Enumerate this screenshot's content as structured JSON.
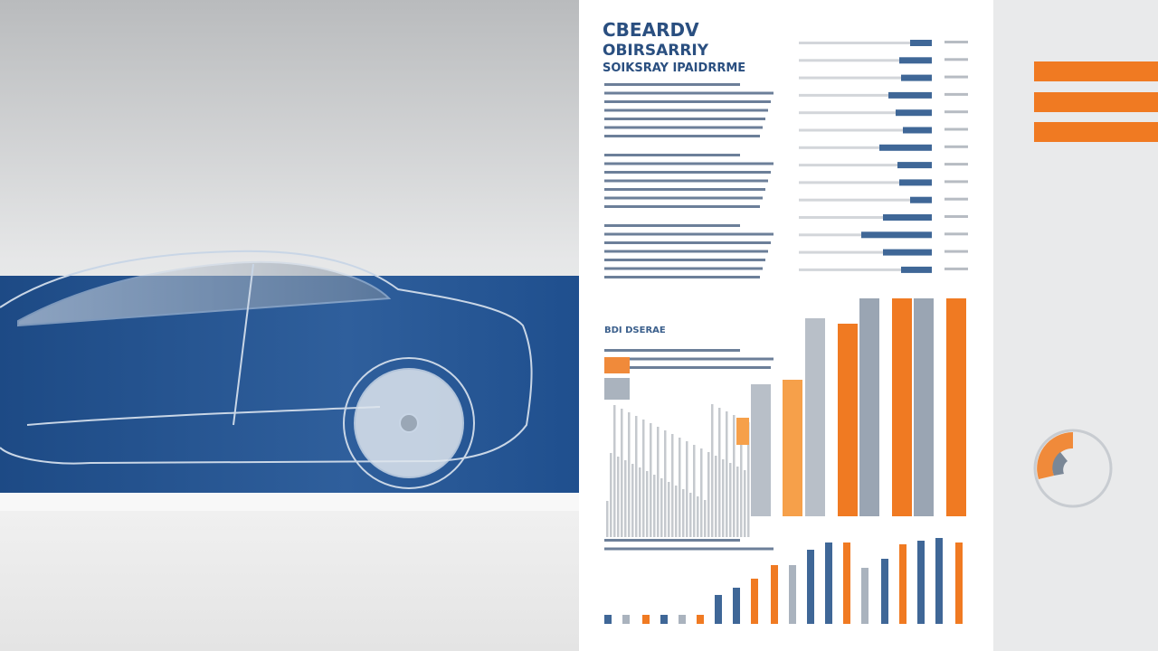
{
  "header": {
    "title": "CBEARDV",
    "subtitle": "OBIRSARRIY",
    "tagline": "SOIKSRAY IPAIDRRME"
  },
  "section": {
    "label": "BDI DSERAE"
  }
}
